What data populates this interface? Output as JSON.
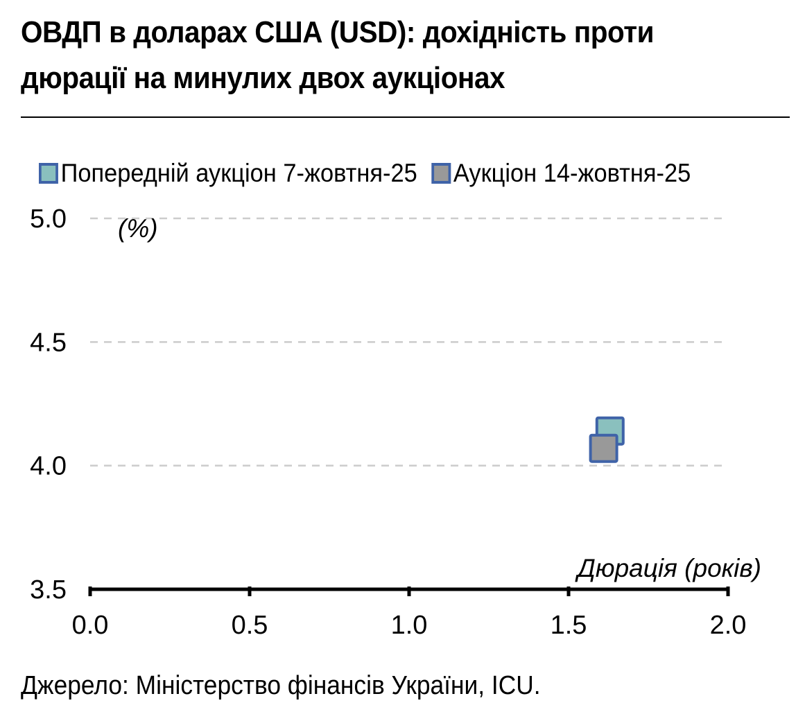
{
  "title": "ОВДП в доларах США (USD): дохідність проти дюрації на минулих двох аукціонах",
  "source": "Джерело: Міністерство фінансів України, ICU.",
  "colors": {
    "series_previous": "#8ac0be",
    "series_current": "#999999",
    "marker_border": "#3f63a8",
    "grid": "#cccccc",
    "axis": "#000000"
  },
  "chart_data": {
    "type": "scatter",
    "xlabel": "Дюрація (років)",
    "ylabel": "(%)",
    "xlim": [
      0,
      2
    ],
    "ylim": [
      3.5,
      5
    ],
    "x_ticks": [
      "0.0",
      "0.5",
      "1.0",
      "1.5",
      "2.0"
    ],
    "y_ticks": [
      "3.5",
      "4.0",
      "4.5",
      "5.0"
    ],
    "grid": "horizontal dashed",
    "legend_position": "top",
    "series": [
      {
        "name": "Попередній аукціон 7-жовтня-25",
        "color": "#8ac0be",
        "points": [
          {
            "x": 1.63,
            "y": 4.14
          }
        ]
      },
      {
        "name": "Аукціон 14-жовтня-25",
        "color": "#999999",
        "points": [
          {
            "x": 1.61,
            "y": 4.07
          }
        ]
      }
    ]
  }
}
